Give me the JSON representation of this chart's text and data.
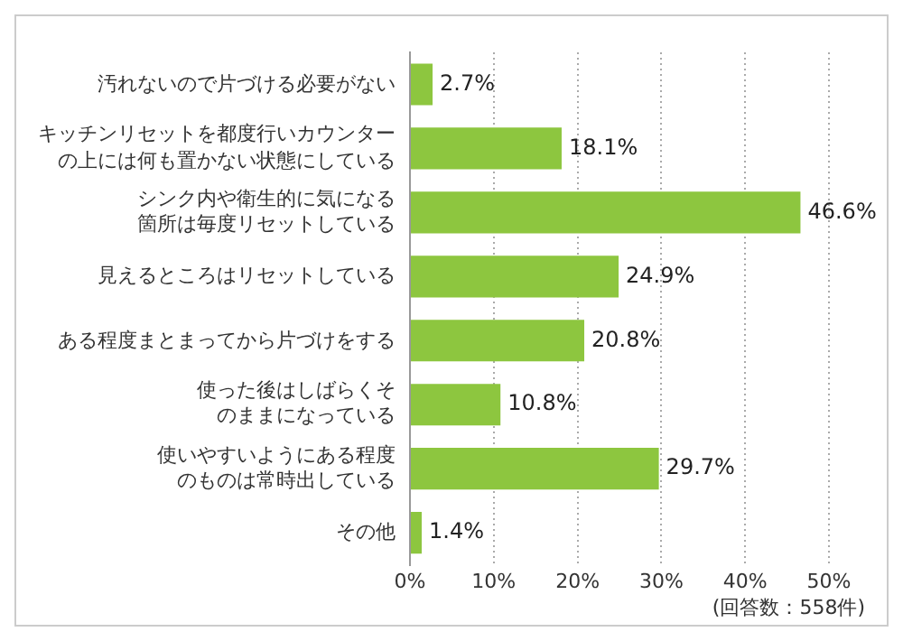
{
  "chart_data": {
    "type": "bar",
    "orientation": "horizontal",
    "categories": [
      "汚れないので片づける必要がない",
      "キッチンリセットを都度行いカウンターの上には何も置かない状態にしている",
      "シンク内や衛生的に気になる箇所は毎度リセットしている",
      "見えるところはリセットしている",
      "ある程度まとまってから片づけをする",
      "使った後はしばらくそのままになっている",
      "使いやすいようにある程度のものは常時出している",
      "その他"
    ],
    "values": [
      2.7,
      18.1,
      46.6,
      24.9,
      20.8,
      10.8,
      29.7,
      1.4
    ],
    "value_labels": [
      "2.7%",
      "18.1%",
      "46.6%",
      "24.9%",
      "20.8%",
      "10.8%",
      "29.7%",
      "1.4%"
    ],
    "color": "#8dc63f",
    "xlim": [
      0,
      50
    ],
    "xticks": [
      {
        "value": 0,
        "label": "0%"
      },
      {
        "value": 10,
        "label": "10%"
      },
      {
        "value": 20,
        "label": "20%"
      },
      {
        "value": 30,
        "label": "30%"
      },
      {
        "value": 40,
        "label": "40%"
      },
      {
        "value": 50,
        "label": "50%"
      }
    ],
    "grid": "x",
    "legend": false,
    "annotations": [
      "(回答数：558件)"
    ]
  }
}
